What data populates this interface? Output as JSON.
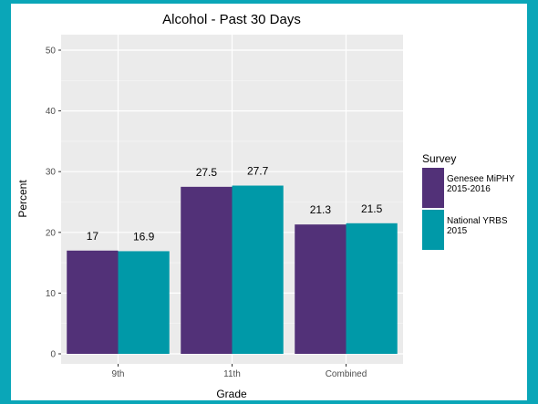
{
  "chart_data": {
    "type": "bar",
    "title": "Alcohol - Past 30 Days",
    "xlabel": "Grade",
    "ylabel": "Percent",
    "categories": [
      "9th",
      "11th",
      "Combined"
    ],
    "ylim": [
      0,
      50
    ],
    "yticks": [
      0,
      10,
      20,
      30,
      40,
      50
    ],
    "grid": true,
    "legend": {
      "title": "Survey",
      "placement": "right",
      "entries": [
        "Genesee MiPHY\n2015-2016",
        "National YRBS\n2015"
      ]
    },
    "series": [
      {
        "name": "Genesee MiPHY\n2015-2016",
        "color": "#523178",
        "values": [
          17,
          27.5,
          21.3
        ],
        "labels": [
          "17",
          "27.5",
          "21.3"
        ]
      },
      {
        "name": "National YRBS\n2015",
        "color": "#0099A8",
        "values": [
          16.9,
          27.7,
          21.5
        ],
        "labels": [
          "16.9",
          "27.7",
          "21.5"
        ]
      }
    ]
  },
  "colors": {
    "frame": "#0AA6B8",
    "panel": "#EBEBEB",
    "gridline": "#FFFFFF"
  }
}
